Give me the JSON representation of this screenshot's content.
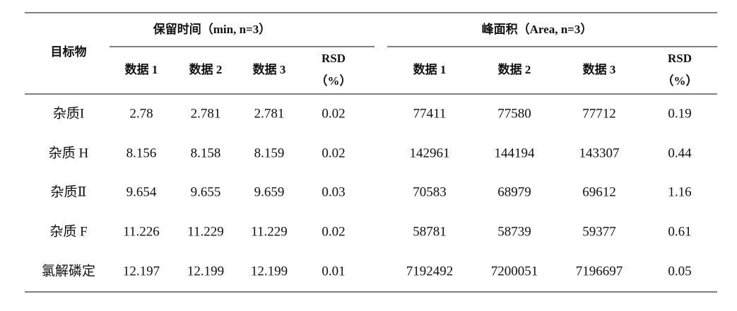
{
  "table": {
    "header": {
      "row_label": "目标物",
      "groups": [
        {
          "title": "保留时间（min, n=3）",
          "columns": [
            [
              "数据 1"
            ],
            [
              "数据 2"
            ],
            [
              "数据 3"
            ],
            [
              "RSD",
              "（%）"
            ]
          ]
        },
        {
          "title": "峰面积（Area, n=3）",
          "columns": [
            [
              "数据 1"
            ],
            [
              "数据 2"
            ],
            [
              "数据 3"
            ],
            [
              "RSD",
              "（%）"
            ]
          ]
        }
      ]
    },
    "rows": [
      {
        "name": "杂质I",
        "cells": [
          [
            "2.78",
            "2.781",
            "2.781",
            "0.02"
          ],
          [
            "77411",
            "77580",
            "77712",
            "0.19"
          ]
        ]
      },
      {
        "name": "杂质 H",
        "cells": [
          [
            "8.156",
            "8.158",
            "8.159",
            "0.02"
          ],
          [
            "142961",
            "144194",
            "143307",
            "0.44"
          ]
        ]
      },
      {
        "name": "杂质Ⅱ",
        "cells": [
          [
            "9.654",
            "9.655",
            "9.659",
            "0.03"
          ],
          [
            "70583",
            "68979",
            "69612",
            "1.16"
          ]
        ]
      },
      {
        "name": "杂质 F",
        "cells": [
          [
            "11.226",
            "11.229",
            "11.229",
            "0.02"
          ],
          [
            "58781",
            "58739",
            "59377",
            "0.61"
          ]
        ]
      },
      {
        "name": "氯解磷定",
        "cells": [
          [
            "12.197",
            "12.199",
            "12.199",
            "0.01"
          ],
          [
            "7192492",
            "7200051",
            "7196697",
            "0.05"
          ]
        ]
      }
    ]
  }
}
